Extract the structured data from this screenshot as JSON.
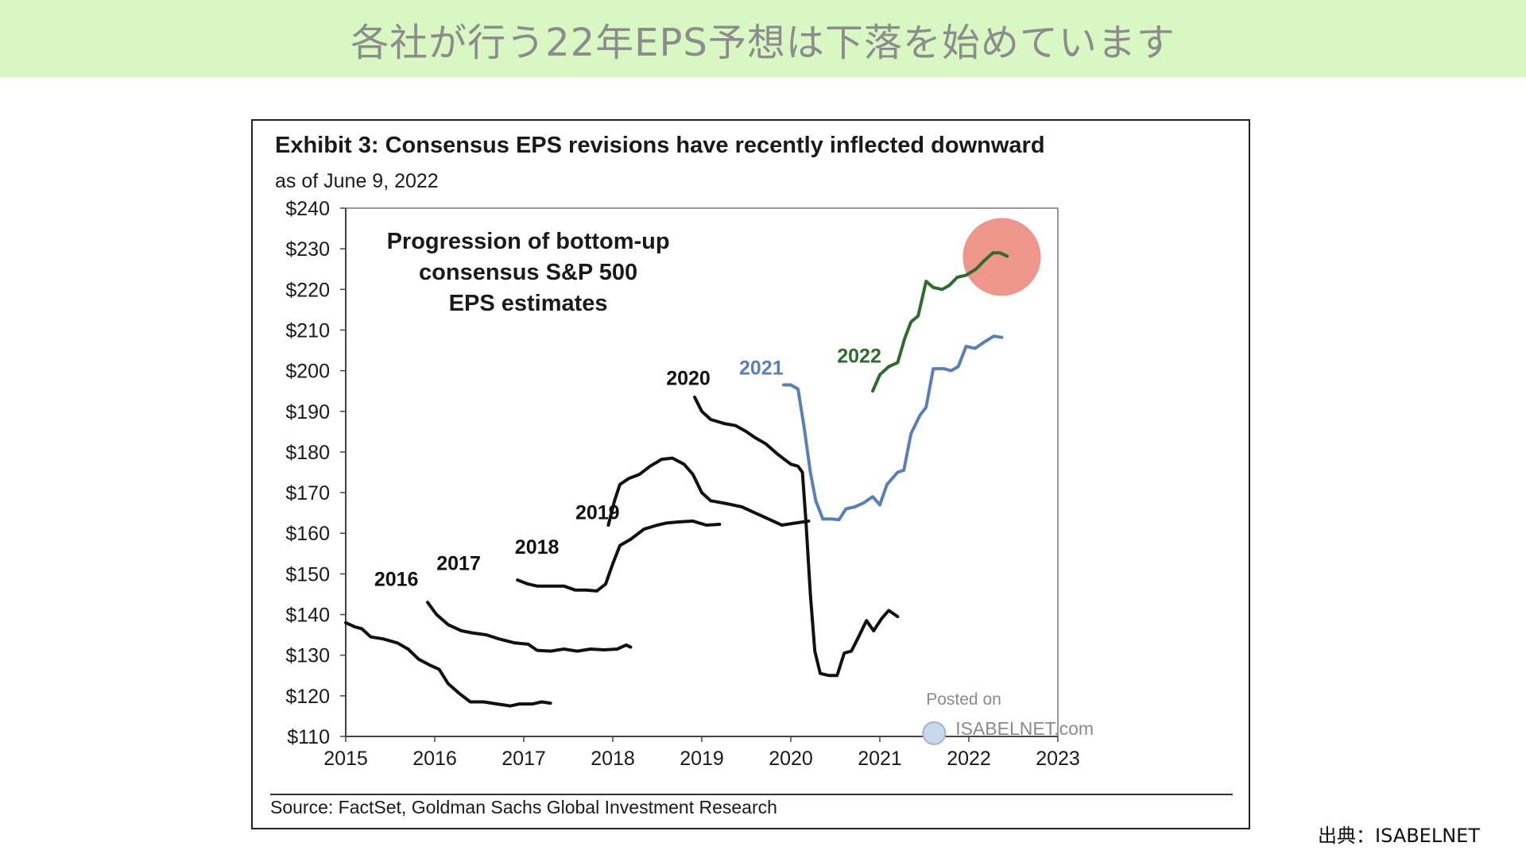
{
  "banner": {
    "title": "各社が行う22年EPS予想は下落を始めています"
  },
  "credit": "出典：ISABELNET",
  "chart_data": {
    "type": "line",
    "title": "Exhibit 3: Consensus EPS revisions have recently inflected downward",
    "subtitle": "as of June 9, 2022",
    "annotation": "Progression of bottom-up consensus S&P 500 EPS estimates",
    "source": "Source: FactSet, Goldman Sachs Global Investment Research",
    "watermark": {
      "line1": "Posted on",
      "line2": "ISABELNET.com"
    },
    "xlim": [
      2015,
      2023
    ],
    "ylim": [
      110,
      240
    ],
    "x_ticks": [
      2015,
      2016,
      2017,
      2018,
      2019,
      2020,
      2021,
      2022,
      2023
    ],
    "x_tick_labels": [
      "2015",
      "2016",
      "2017",
      "2018",
      "2019",
      "2020",
      "2021",
      "2022",
      "2023"
    ],
    "y_ticks": [
      110,
      120,
      130,
      140,
      150,
      160,
      170,
      180,
      190,
      200,
      210,
      220,
      230,
      240
    ],
    "y_tick_labels": [
      "$110",
      "$120",
      "$130",
      "$140",
      "$150",
      "$160",
      "$170",
      "$180",
      "$190",
      "$200",
      "$210",
      "$220",
      "$230",
      "$240"
    ],
    "grid": false,
    "highlight": {
      "color": "#ec8a80",
      "x": 2022.37,
      "y": 228
    },
    "series": [
      {
        "name": "2016",
        "color": "#111111",
        "label_pos": [
          2015.32,
          147
        ],
        "points": [
          [
            2015.0,
            138
          ],
          [
            2015.1,
            137
          ],
          [
            2015.18,
            136.5
          ],
          [
            2015.28,
            134.5
          ],
          [
            2015.42,
            134
          ],
          [
            2015.58,
            133
          ],
          [
            2015.7,
            131.5
          ],
          [
            2015.82,
            129
          ],
          [
            2015.95,
            127.5
          ],
          [
            2016.05,
            126.5
          ],
          [
            2016.15,
            123
          ],
          [
            2016.28,
            120.5
          ],
          [
            2016.4,
            118.5
          ],
          [
            2016.55,
            118.5
          ],
          [
            2016.7,
            118
          ],
          [
            2016.85,
            117.5
          ],
          [
            2016.95,
            118
          ],
          [
            2017.1,
            118
          ],
          [
            2017.2,
            118.5
          ],
          [
            2017.3,
            118.2
          ]
        ]
      },
      {
        "name": "2017",
        "color": "#111111",
        "label_pos": [
          2016.02,
          151
        ],
        "points": [
          [
            2015.92,
            143
          ],
          [
            2016.02,
            140
          ],
          [
            2016.15,
            137.5
          ],
          [
            2016.3,
            136
          ],
          [
            2016.42,
            135.5
          ],
          [
            2016.58,
            135
          ],
          [
            2016.72,
            134
          ],
          [
            2016.9,
            133
          ],
          [
            2017.05,
            132.7
          ],
          [
            2017.15,
            131.2
          ],
          [
            2017.3,
            131
          ],
          [
            2017.45,
            131.5
          ],
          [
            2017.6,
            131
          ],
          [
            2017.75,
            131.5
          ],
          [
            2017.9,
            131.3
          ],
          [
            2018.05,
            131.5
          ],
          [
            2018.15,
            132.5
          ],
          [
            2018.2,
            132
          ]
        ]
      },
      {
        "name": "2018",
        "color": "#111111",
        "label_pos": [
          2016.9,
          155
        ],
        "points": [
          [
            2016.93,
            148.5
          ],
          [
            2017.05,
            147.5
          ],
          [
            2017.15,
            147
          ],
          [
            2017.3,
            147
          ],
          [
            2017.45,
            147
          ],
          [
            2017.58,
            146
          ],
          [
            2017.7,
            146
          ],
          [
            2017.82,
            145.8
          ],
          [
            2017.92,
            147.5
          ],
          [
            2018.0,
            152.5
          ],
          [
            2018.08,
            157
          ],
          [
            2018.2,
            158.5
          ],
          [
            2018.35,
            161
          ],
          [
            2018.5,
            162
          ],
          [
            2018.6,
            162.5
          ],
          [
            2018.75,
            162.8
          ],
          [
            2018.9,
            163
          ],
          [
            2019.05,
            162
          ],
          [
            2019.2,
            162.2
          ]
        ]
      },
      {
        "name": "2019",
        "color": "#111111",
        "label_pos": [
          2017.58,
          163.5
        ],
        "points": [
          [
            2017.95,
            162
          ],
          [
            2018.02,
            168
          ],
          [
            2018.08,
            172
          ],
          [
            2018.18,
            173.5
          ],
          [
            2018.3,
            174.5
          ],
          [
            2018.42,
            176.5
          ],
          [
            2018.55,
            178.2
          ],
          [
            2018.67,
            178.5
          ],
          [
            2018.8,
            177
          ],
          [
            2018.9,
            174.5
          ],
          [
            2019.0,
            170
          ],
          [
            2019.1,
            168
          ],
          [
            2019.3,
            167.2
          ],
          [
            2019.45,
            166.5
          ],
          [
            2019.6,
            165
          ],
          [
            2019.75,
            163.5
          ],
          [
            2019.9,
            162
          ],
          [
            2020.05,
            162.5
          ],
          [
            2020.2,
            163
          ]
        ]
      },
      {
        "name": "2020",
        "color": "#111111",
        "label_pos": [
          2018.6,
          196.5
        ],
        "points": [
          [
            2018.92,
            193.5
          ],
          [
            2019.0,
            190
          ],
          [
            2019.1,
            188
          ],
          [
            2019.25,
            187
          ],
          [
            2019.38,
            186.5
          ],
          [
            2019.5,
            185
          ],
          [
            2019.6,
            183.5
          ],
          [
            2019.72,
            182
          ],
          [
            2019.85,
            179.5
          ],
          [
            2020.0,
            177
          ],
          [
            2020.08,
            176.5
          ],
          [
            2020.13,
            175
          ],
          [
            2020.17,
            163
          ],
          [
            2020.22,
            145
          ],
          [
            2020.27,
            131
          ],
          [
            2020.33,
            125.5
          ],
          [
            2020.43,
            125
          ],
          [
            2020.52,
            125
          ],
          [
            2020.6,
            130.5
          ],
          [
            2020.68,
            131
          ],
          [
            2020.75,
            134
          ],
          [
            2020.85,
            138.5
          ],
          [
            2020.93,
            136
          ],
          [
            2021.02,
            139
          ],
          [
            2021.1,
            141
          ],
          [
            2021.2,
            139.5
          ]
        ]
      },
      {
        "name": "2021",
        "color": "#5a7fb8",
        "label_pos": [
          2019.42,
          199
        ],
        "points": [
          [
            2019.92,
            196.5
          ],
          [
            2020.0,
            196.5
          ],
          [
            2020.08,
            195.5
          ],
          [
            2020.15,
            186
          ],
          [
            2020.22,
            175
          ],
          [
            2020.28,
            168
          ],
          [
            2020.36,
            163.5
          ],
          [
            2020.46,
            163.5
          ],
          [
            2020.54,
            163.3
          ],
          [
            2020.62,
            166
          ],
          [
            2020.72,
            166.5
          ],
          [
            2020.82,
            167.5
          ],
          [
            2020.92,
            169
          ],
          [
            2021.0,
            167
          ],
          [
            2021.08,
            172
          ],
          [
            2021.2,
            175
          ],
          [
            2021.27,
            175.5
          ],
          [
            2021.35,
            184.5
          ],
          [
            2021.45,
            189
          ],
          [
            2021.52,
            191
          ],
          [
            2021.6,
            200.5
          ],
          [
            2021.72,
            200.5
          ],
          [
            2021.8,
            200
          ],
          [
            2021.88,
            201
          ],
          [
            2021.97,
            206
          ],
          [
            2022.07,
            205.5
          ],
          [
            2022.17,
            207
          ],
          [
            2022.28,
            208.5
          ],
          [
            2022.37,
            208.2
          ]
        ]
      },
      {
        "name": "2022",
        "color": "#2f6b2f",
        "label_pos": [
          2020.52,
          202
        ],
        "points": [
          [
            2020.92,
            195
          ],
          [
            2021.0,
            199
          ],
          [
            2021.1,
            201
          ],
          [
            2021.2,
            202
          ],
          [
            2021.28,
            208
          ],
          [
            2021.35,
            212
          ],
          [
            2021.43,
            213.5
          ],
          [
            2021.52,
            222
          ],
          [
            2021.6,
            220.5
          ],
          [
            2021.7,
            220
          ],
          [
            2021.78,
            221
          ],
          [
            2021.87,
            223
          ],
          [
            2021.97,
            223.5
          ],
          [
            2022.08,
            225
          ],
          [
            2022.17,
            227
          ],
          [
            2022.27,
            229
          ],
          [
            2022.35,
            229
          ],
          [
            2022.43,
            228.2
          ]
        ]
      }
    ]
  }
}
